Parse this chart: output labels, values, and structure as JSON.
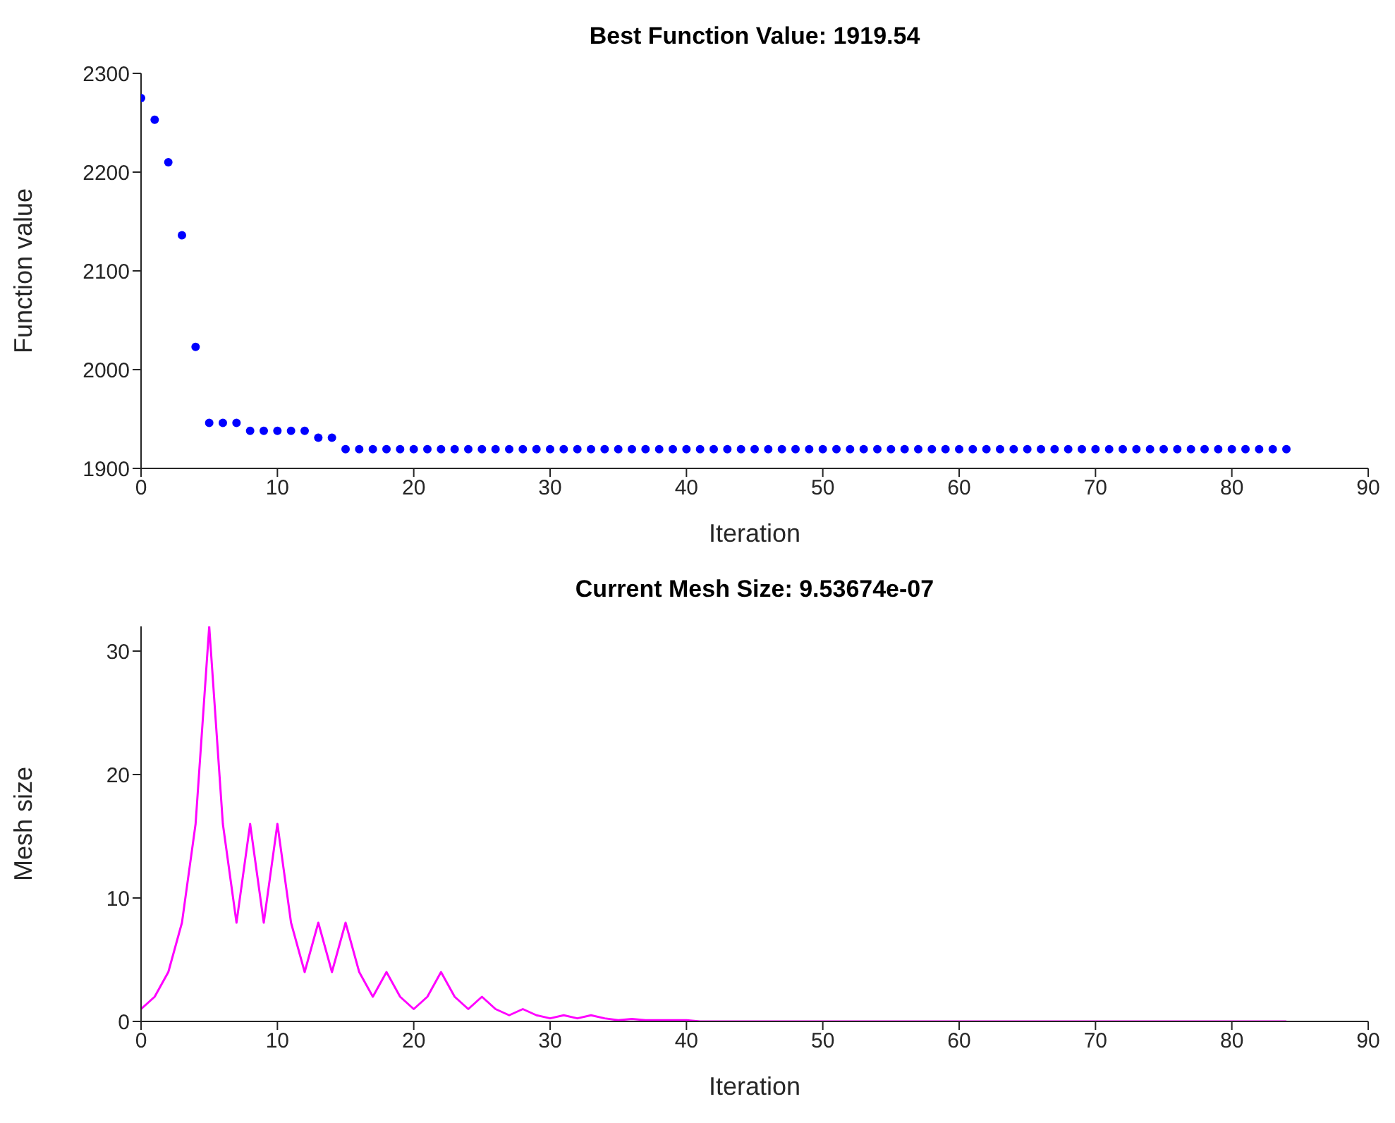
{
  "chart_data": [
    {
      "type": "scatter",
      "title": "Best Function Value: 1919.54",
      "xlabel": "Iteration",
      "ylabel": "Function value",
      "marker": "circle",
      "xlim": [
        0,
        90
      ],
      "xticks": [
        0,
        10,
        20,
        30,
        40,
        50,
        60,
        70,
        80,
        90
      ],
      "ylim": [
        1900,
        2300
      ],
      "yticks": [
        1900,
        2000,
        2100,
        2200,
        2300
      ],
      "x": [
        0,
        1,
        2,
        3,
        4,
        5,
        6,
        7,
        8,
        9,
        10,
        11,
        12,
        13,
        14,
        15,
        16,
        17,
        18,
        19,
        20,
        21,
        22,
        23,
        24,
        25,
        26,
        27,
        28,
        29,
        30,
        31,
        32,
        33,
        34,
        35,
        36,
        37,
        38,
        39,
        40,
        41,
        42,
        43,
        44,
        45,
        46,
        47,
        48,
        49,
        50,
        51,
        52,
        53,
        54,
        55,
        56,
        57,
        58,
        59,
        60,
        61,
        62,
        63,
        64,
        65,
        66,
        67,
        68,
        69,
        70,
        71,
        72,
        73,
        74,
        75,
        76,
        77,
        78,
        79,
        80,
        81,
        82,
        83,
        84
      ],
      "series": [
        {
          "color": "#0000ff",
          "values": [
            2275,
            2253,
            2210,
            2136,
            2023,
            1946,
            1946,
            1946,
            1938,
            1938,
            1938,
            1938,
            1938,
            1931,
            1931,
            1919.54,
            1919.54,
            1919.54,
            1919.54,
            1919.54,
            1919.54,
            1919.54,
            1919.54,
            1919.54,
            1919.54,
            1919.54,
            1919.54,
            1919.54,
            1919.54,
            1919.54,
            1919.54,
            1919.54,
            1919.54,
            1919.54,
            1919.54,
            1919.54,
            1919.54,
            1919.54,
            1919.54,
            1919.54,
            1919.54,
            1919.54,
            1919.54,
            1919.54,
            1919.54,
            1919.54,
            1919.54,
            1919.54,
            1919.54,
            1919.54,
            1919.54,
            1919.54,
            1919.54,
            1919.54,
            1919.54,
            1919.54,
            1919.54,
            1919.54,
            1919.54,
            1919.54,
            1919.54,
            1919.54,
            1919.54,
            1919.54,
            1919.54,
            1919.54,
            1919.54,
            1919.54,
            1919.54,
            1919.54,
            1919.54,
            1919.54,
            1919.54,
            1919.54,
            1919.54,
            1919.54,
            1919.54,
            1919.54,
            1919.54,
            1919.54,
            1919.54,
            1919.54,
            1919.54,
            1919.54,
            1919.54
          ]
        }
      ]
    },
    {
      "type": "line",
      "title": "Current Mesh Size: 9.53674e-07",
      "xlabel": "Iteration",
      "ylabel": "Mesh size",
      "marker": "none",
      "xlim": [
        0,
        90
      ],
      "xticks": [
        0,
        10,
        20,
        30,
        40,
        50,
        60,
        70,
        80,
        90
      ],
      "ylim": [
        0,
        32
      ],
      "yticks": [
        0,
        10,
        20,
        30
      ],
      "x": [
        0,
        1,
        2,
        3,
        4,
        5,
        6,
        7,
        8,
        9,
        10,
        11,
        12,
        13,
        14,
        15,
        16,
        17,
        18,
        19,
        20,
        21,
        22,
        23,
        24,
        25,
        26,
        27,
        28,
        29,
        30,
        31,
        32,
        33,
        34,
        35,
        36,
        37,
        38,
        39,
        40,
        41,
        42,
        43,
        44,
        45,
        46,
        47,
        48,
        49,
        50,
        51,
        52,
        53,
        54,
        55,
        56,
        57,
        58,
        59,
        60,
        61,
        62,
        63,
        64,
        65,
        66,
        67,
        68,
        69,
        70,
        71,
        72,
        73,
        74,
        75,
        76,
        77,
        78,
        79,
        80,
        81,
        82,
        83,
        84
      ],
      "series": [
        {
          "color": "#ff00ff",
          "values": [
            1,
            2,
            4,
            8,
            16,
            32,
            16,
            8,
            16,
            8,
            16,
            8,
            4,
            8,
            4,
            8,
            4,
            2,
            4,
            2,
            1,
            2,
            4,
            2,
            1,
            2,
            1,
            0.5,
            1,
            0.5,
            0.25,
            0.5,
            0.25,
            0.5,
            0.25,
            0.1,
            0.2,
            0.1,
            0.1,
            0.1,
            0.1,
            0,
            0,
            0,
            0,
            0,
            0,
            0,
            0,
            0,
            0,
            0,
            0,
            0,
            0,
            0,
            0,
            0,
            0,
            0,
            0,
            0,
            0,
            0,
            0,
            0,
            0,
            0,
            0,
            0,
            0,
            0,
            0,
            0,
            0,
            0,
            0,
            0,
            0,
            0,
            0,
            0,
            0,
            0,
            0
          ]
        }
      ]
    }
  ]
}
